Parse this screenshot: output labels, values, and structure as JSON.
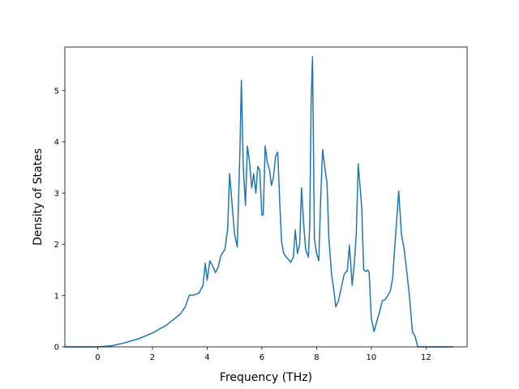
{
  "chart_data": {
    "type": "line",
    "title": "",
    "xlabel": "Frequency (THz)",
    "ylabel": "Density of States",
    "xlim": [
      -1.2,
      13.5
    ],
    "ylim": [
      0,
      5.85
    ],
    "x_ticks": [
      0,
      2,
      4,
      6,
      8,
      10,
      12
    ],
    "x_tick_labels": [
      "0",
      "2",
      "4",
      "6",
      "8",
      "10",
      "12"
    ],
    "y_ticks": [
      0,
      1,
      2,
      3,
      4,
      5
    ],
    "y_tick_labels": [
      "0",
      "1",
      "2",
      "3",
      "4",
      "5"
    ],
    "grid": false,
    "legend": "none",
    "line_color": "#1f77b4",
    "series": [
      {
        "x": [
          -1.2,
          -0.5,
          0.0,
          0.5,
          1.0,
          1.5,
          2.0,
          2.5,
          3.0,
          3.2,
          3.35,
          3.5,
          3.7,
          3.85,
          3.93,
          4.0,
          4.1,
          4.2,
          4.3,
          4.4,
          4.5,
          4.65,
          4.75,
          4.82,
          4.9,
          5.0,
          5.1,
          5.2,
          5.25,
          5.32,
          5.4,
          5.47,
          5.55,
          5.63,
          5.7,
          5.78,
          5.85,
          5.92,
          6.0,
          6.05,
          6.12,
          6.2,
          6.28,
          6.35,
          6.42,
          6.5,
          6.58,
          6.65,
          6.72,
          6.8,
          6.9,
          7.05,
          7.15,
          7.22,
          7.3,
          7.38,
          7.45,
          7.52,
          7.6,
          7.7,
          7.75,
          7.8,
          7.85,
          7.92,
          8.0,
          8.08,
          8.15,
          8.22,
          8.3,
          8.38,
          8.45,
          8.55,
          8.62,
          8.7,
          8.8,
          8.9,
          9.0,
          9.05,
          9.12,
          9.2,
          9.3,
          9.38,
          9.45,
          9.52,
          9.6,
          9.65,
          9.72,
          9.8,
          9.87,
          9.92,
          10.0,
          10.1,
          10.2,
          10.3,
          10.4,
          10.5,
          10.6,
          10.7,
          10.78,
          10.85,
          10.92,
          11.0,
          11.1,
          11.2,
          11.3,
          11.4,
          11.5,
          11.6,
          11.7,
          11.85,
          12.0,
          12.5,
          13.0
        ],
        "y": [
          0,
          0,
          0,
          0.02,
          0.08,
          0.16,
          0.27,
          0.42,
          0.63,
          0.78,
          1.01,
          1.01,
          1.05,
          1.2,
          1.63,
          1.3,
          1.68,
          1.58,
          1.45,
          1.55,
          1.78,
          1.9,
          2.3,
          3.38,
          2.85,
          2.2,
          1.95,
          3.9,
          5.2,
          3.5,
          2.76,
          3.92,
          3.6,
          3.1,
          3.38,
          3.0,
          3.52,
          3.45,
          2.57,
          2.58,
          3.92,
          3.6,
          3.45,
          3.15,
          3.3,
          3.72,
          3.8,
          2.85,
          2.05,
          1.82,
          1.75,
          1.65,
          1.75,
          2.28,
          1.82,
          2.0,
          3.1,
          2.45,
          1.9,
          1.75,
          2.4,
          4.8,
          5.66,
          2.1,
          1.82,
          1.68,
          2.9,
          3.85,
          3.5,
          3.2,
          2.1,
          1.4,
          1.15,
          0.78,
          0.9,
          1.15,
          1.4,
          1.45,
          1.48,
          1.98,
          1.2,
          1.65,
          2.2,
          3.57,
          3.05,
          2.7,
          1.5,
          1.47,
          1.5,
          1.45,
          0.55,
          0.3,
          0.5,
          0.68,
          0.9,
          0.92,
          1.0,
          1.1,
          1.35,
          1.9,
          2.42,
          3.04,
          2.2,
          1.9,
          1.45,
          0.95,
          0.3,
          0.2,
          0.0,
          0.0,
          0.0,
          0.0,
          0.0
        ]
      }
    ]
  }
}
